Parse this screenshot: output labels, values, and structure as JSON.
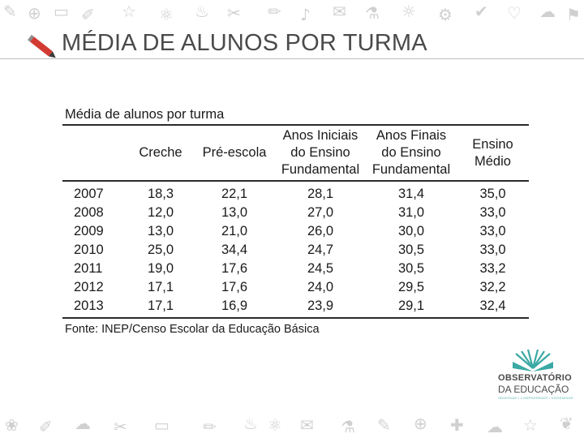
{
  "slide": {
    "title": "MÉDIA DE ALUNOS POR TURMA"
  },
  "table": {
    "caption": "Média de alunos por turma",
    "columns": [
      "",
      "Creche",
      "Pré-escola",
      "Anos Iniciais do Ensino Fundamental",
      "Anos Finais do Ensino Fundamental",
      "Ensino Médio"
    ],
    "header_lines": {
      "creche": "Creche",
      "pre_escola": "Pré-escola",
      "anos_iniciais": [
        "Anos Iniciais",
        "do Ensino",
        "Fundamental"
      ],
      "anos_finais": [
        "Anos Finais",
        "do Ensino",
        "Fundamental"
      ],
      "ensino_medio": [
        "Ensino",
        "Médio"
      ]
    },
    "rows": [
      [
        "2007",
        "18,3",
        "22,1",
        "28,1",
        "31,4",
        "35,0"
      ],
      [
        "2008",
        "12,0",
        "13,0",
        "27,0",
        "31,0",
        "33,0"
      ],
      [
        "2009",
        "13,0",
        "21,0",
        "26,0",
        "30,0",
        "33,0"
      ],
      [
        "2010",
        "25,0",
        "34,4",
        "24,7",
        "30,5",
        "33,0"
      ],
      [
        "2011",
        "19,0",
        "17,6",
        "24,5",
        "30,5",
        "33,2"
      ],
      [
        "2012",
        "17,1",
        "17,6",
        "24,0",
        "29,5",
        "32,2"
      ],
      [
        "2013",
        "17,1",
        "16,9",
        "23,9",
        "29,1",
        "32,4"
      ]
    ],
    "source": "Fonte: INEP/Censo Escolar da Educação Básica"
  },
  "logo": {
    "line1": "OBSERVATÓRIO",
    "line2": "DA EDUCAÇÃO",
    "tagline": "OBSERVAR • COMPREENDER • DISSEMINAR",
    "colors": {
      "teal": "#3aa9a4",
      "text": "#4a4a4a"
    }
  },
  "decor": {
    "title_icon": "pencil-icon",
    "doodles": "school-supplies-doodle-pattern",
    "colors": {
      "pencil_red": "#d23a32",
      "doodle_gray": "#d0d0d0"
    }
  }
}
